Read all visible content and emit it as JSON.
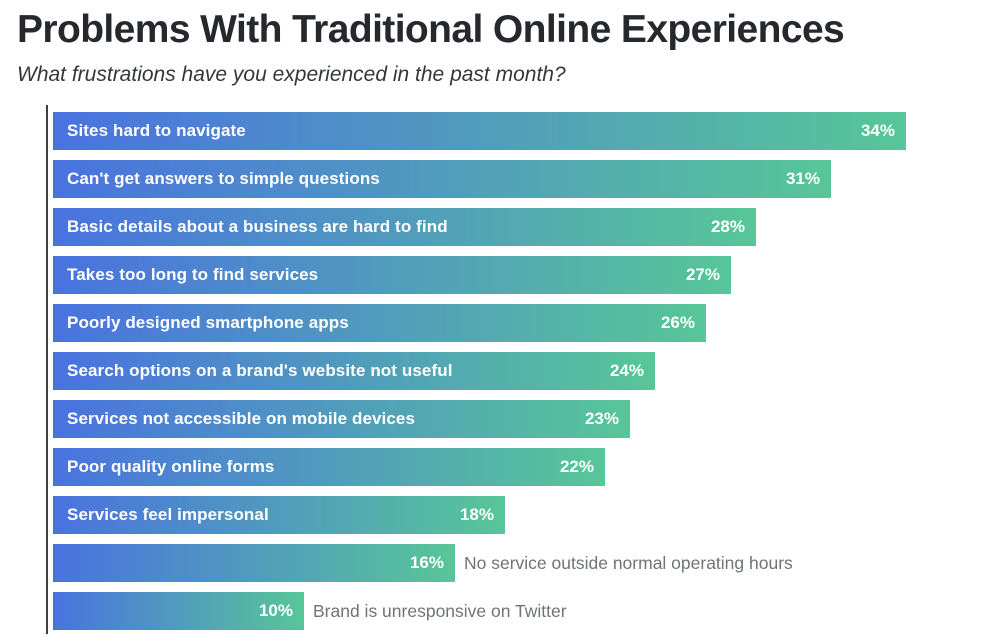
{
  "header": {
    "title": "Problems With Traditional Online Experiences",
    "subtitle": "What frustrations have you experienced in the past month?"
  },
  "chart_data": {
    "type": "bar",
    "orientation": "horizontal",
    "title": "Problems With Traditional Online Experiences",
    "subtitle": "What frustrations have you experienced in the past month?",
    "value_suffix": "%",
    "xlim": [
      0,
      36
    ],
    "grid": false,
    "legend": false,
    "categories": [
      "Sites hard to navigate",
      "Can't get answers to simple questions",
      "Basic details about a business are hard to find",
      "Takes too long to find services",
      "Poorly designed smartphone apps",
      "Search options on a brand's website not useful",
      "Services not accessible on mobile devices",
      "Poor quality online forms",
      "Services feel impersonal",
      "No service outside normal operating hours",
      "Brand is unresponsive on Twitter"
    ],
    "values": [
      34,
      31,
      28,
      27,
      26,
      24,
      23,
      22,
      18,
      16,
      10
    ],
    "items": [
      {
        "label": "Sites hard to navigate",
        "value": 34,
        "value_label": "34%",
        "label_position": "inside"
      },
      {
        "label": "Can't get answers to simple questions",
        "value": 31,
        "value_label": "31%",
        "label_position": "inside"
      },
      {
        "label": "Basic details about a business are hard to find",
        "value": 28,
        "value_label": "28%",
        "label_position": "inside"
      },
      {
        "label": "Takes too long to find services",
        "value": 27,
        "value_label": "27%",
        "label_position": "inside"
      },
      {
        "label": "Poorly designed smartphone apps",
        "value": 26,
        "value_label": "26%",
        "label_position": "inside"
      },
      {
        "label": "Search options on a brand's website not useful",
        "value": 24,
        "value_label": "24%",
        "label_position": "inside"
      },
      {
        "label": "Services not accessible on mobile devices",
        "value": 23,
        "value_label": "23%",
        "label_position": "inside"
      },
      {
        "label": "Poor quality online forms",
        "value": 22,
        "value_label": "22%",
        "label_position": "inside"
      },
      {
        "label": "Services feel impersonal",
        "value": 18,
        "value_label": "18%",
        "label_position": "inside"
      },
      {
        "label": "No service outside normal operating hours",
        "value": 16,
        "value_label": "16%",
        "label_position": "outside"
      },
      {
        "label": "Brand is unresponsive on Twitter",
        "value": 10,
        "value_label": "10%",
        "label_position": "outside"
      }
    ],
    "colors": {
      "bar_gradient_start": "#4a72e0",
      "bar_gradient_end": "#57c698",
      "bar_label_text": "#ffffff",
      "outside_label_text": "#6e7478",
      "axis_line": "#3c4043",
      "title_text": "#25292d",
      "subtitle_text": "#33383c"
    }
  }
}
